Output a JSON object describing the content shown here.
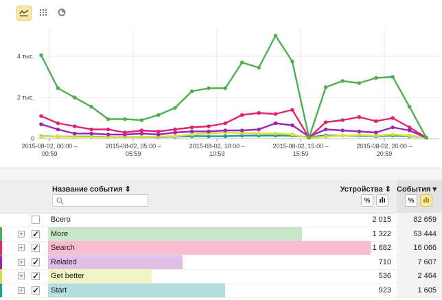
{
  "toolbar": {
    "buttons": [
      {
        "icon": "line-chart-icon",
        "active": true
      },
      {
        "icon": "bar-chart-icon",
        "active": false
      },
      {
        "icon": "pie-chart-icon",
        "active": false
      }
    ]
  },
  "chart_data": {
    "type": "line",
    "y_ticks": [
      "0",
      "2 тыс.",
      "4 тыс."
    ],
    "ylim": [
      0,
      5000
    ],
    "x_labels": [
      {
        "line1": "2015-08-02, 00:00 –",
        "line2": "00:59",
        "index": 0
      },
      {
        "line1": "2015-08-02, 05:00 –",
        "line2": "05:59",
        "index": 5
      },
      {
        "line1": "2015-08-02, 10:00 –",
        "line2": "10:59",
        "index": 10
      },
      {
        "line1": "2015-08-02, 15:00 –",
        "line2": "15:59",
        "index": 15
      },
      {
        "line1": "2015-08-02, 20:00 –",
        "line2": "20:59",
        "index": 20
      }
    ],
    "grid": true,
    "series": [
      {
        "name": "More",
        "color": "#4caf50",
        "values": [
          4050,
          2450,
          2000,
          1550,
          950,
          950,
          900,
          1150,
          1500,
          2300,
          2450,
          2450,
          3700,
          3450,
          5000,
          3750,
          50,
          2500,
          2800,
          2700,
          2950,
          3000,
          1550,
          50
        ]
      },
      {
        "name": "Search",
        "color": "#e0246e",
        "values": [
          1100,
          750,
          600,
          450,
          450,
          300,
          400,
          350,
          450,
          550,
          600,
          750,
          1150,
          1250,
          1200,
          1400,
          50,
          800,
          900,
          1050,
          850,
          1000,
          550,
          50
        ]
      },
      {
        "name": "Related",
        "color": "#9c27b0",
        "values": [
          700,
          450,
          250,
          250,
          200,
          200,
          250,
          200,
          300,
          350,
          350,
          400,
          400,
          450,
          750,
          650,
          100,
          450,
          400,
          350,
          300,
          550,
          400,
          50
        ]
      },
      {
        "name": "Get better",
        "color": "#d8df3a",
        "values": [
          100,
          100,
          80,
          80,
          80,
          80,
          80,
          100,
          120,
          200,
          250,
          300,
          280,
          250,
          250,
          200,
          50,
          100,
          150,
          180,
          150,
          200,
          150,
          50
        ]
      },
      {
        "name": "Start",
        "color": "#1e9b96",
        "values": [
          120,
          100,
          100,
          100,
          80,
          80,
          80,
          80,
          100,
          120,
          120,
          120,
          150,
          150,
          150,
          150,
          80,
          150,
          150,
          150,
          120,
          150,
          120,
          60
        ]
      }
    ]
  },
  "table": {
    "col_name": "Название события ⇕",
    "col_devices": "Устройства ⇕",
    "col_events": "События ▾",
    "search_placeholder": "",
    "rows": [
      {
        "name": "Всего",
        "devices": "2 015",
        "events": "82 659",
        "checked": false,
        "expandable": false,
        "color": "",
        "bar_fraction": 0
      },
      {
        "name": "More",
        "devices": "1 322",
        "events": "53 444",
        "checked": true,
        "expandable": true,
        "color": "#c8e6c9",
        "stripe": "#4caf50",
        "bar_fraction": 0.66
      },
      {
        "name": "Search",
        "devices": "1 682",
        "events": "16 066",
        "checked": true,
        "expandable": true,
        "color": "#f8bbd0",
        "stripe": "#e0246e",
        "bar_fraction": 0.84
      },
      {
        "name": "Related",
        "devices": "710",
        "events": "7 607",
        "checked": true,
        "expandable": true,
        "color": "#e1bee7",
        "stripe": "#9c27b0",
        "bar_fraction": 0.35
      },
      {
        "name": "Get better",
        "devices": "536",
        "events": "2 464",
        "checked": true,
        "expandable": true,
        "color": "#f0f4c3",
        "stripe": "#d8df3a",
        "bar_fraction": 0.27
      },
      {
        "name": "Start",
        "devices": "923",
        "events": "1 605",
        "checked": true,
        "expandable": true,
        "color": "#b2dfdb",
        "stripe": "#1e9b96",
        "bar_fraction": 0.46
      }
    ]
  }
}
